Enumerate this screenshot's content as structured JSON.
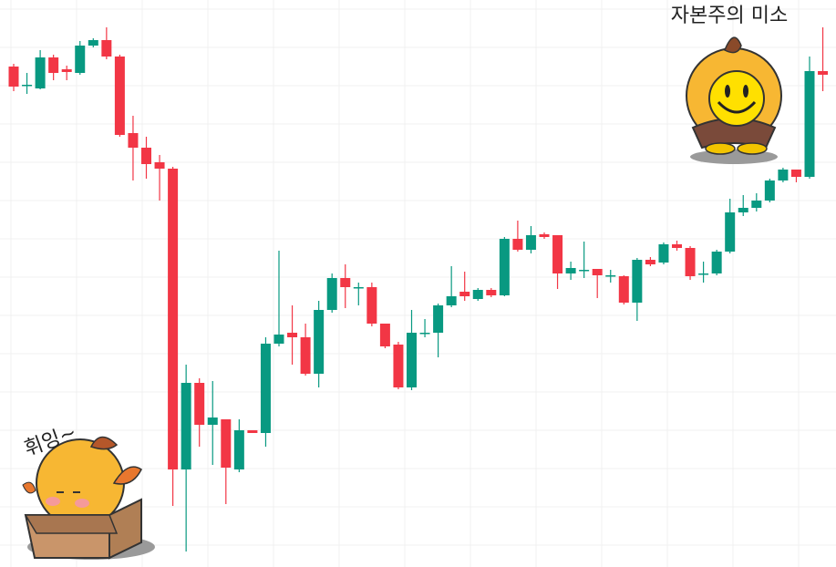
{
  "chart_data": {
    "type": "candlestick",
    "up_color": "#089981",
    "down_color": "#f23645",
    "ylim": [
      0,
      622
    ],
    "open": [
      549,
      529,
      525,
      559,
      546,
      542,
      572,
      578,
      560,
      476,
      460,
      444,
      437,
      107,
      202,
      156,
      162,
      107,
      150,
      147,
      245,
      257,
      252,
      212,
      282,
      317,
      307,
      307,
      267,
      244,
      197,
      257,
      257,
      287,
      302,
      294,
      304,
      298,
      360,
      348,
      365,
      364,
      322,
      326,
      327,
      320,
      319,
      290,
      337,
      334,
      354,
      350,
      322,
      322,
      346,
      389,
      394,
      402,
      424,
      436,
      428,
      544
    ],
    "high": [
      552,
      542,
      567,
      562,
      550,
      577,
      580,
      592,
      562,
      495,
      472,
      452,
      439,
      222,
      207,
      204,
      162,
      162,
      150,
      252,
      347,
      287,
      267,
      292,
      322,
      332,
      312,
      312,
      267,
      247,
      282,
      272,
      289,
      330,
      324,
      306,
      306,
      362,
      380,
      374,
      367,
      364,
      335,
      357,
      327,
      326,
      320,
      339,
      340,
      356,
      358,
      352,
      335,
      348,
      404,
      408,
      410,
      426,
      438,
      436,
      560,
      592
    ],
    "low": [
      522,
      519,
      524,
      534,
      534,
      540,
      570,
      557,
      472,
      424,
      426,
      402,
      67,
      17,
      132,
      112,
      69,
      104,
      147,
      132,
      242,
      222,
      210,
      197,
      279,
      284,
      287,
      264,
      240,
      195,
      194,
      252,
      230,
      285,
      292,
      292,
      296,
      297,
      346,
      344,
      360,
      305,
      315,
      317,
      295,
      312,
      288,
      270,
      330,
      332,
      347,
      315,
      312,
      320,
      344,
      385,
      390,
      400,
      422,
      422,
      426,
      522
    ],
    "close": [
      527,
      529,
      559,
      542,
      543,
      572,
      578,
      560,
      474,
      460,
      442,
      437,
      107,
      202,
      156,
      164,
      109,
      150,
      147,
      245,
      255,
      252,
      212,
      282,
      317,
      307,
      307,
      267,
      242,
      197,
      257,
      257,
      287,
      297,
      297,
      304,
      298,
      360,
      348,
      364,
      362,
      322,
      328,
      326,
      320,
      320,
      290,
      337,
      332,
      354,
      350,
      319,
      322,
      346,
      389,
      394,
      402,
      424,
      436,
      428,
      544,
      540
    ]
  },
  "annotations": {
    "whoosh": "휘잉~",
    "smile": "자본주의 미소"
  }
}
